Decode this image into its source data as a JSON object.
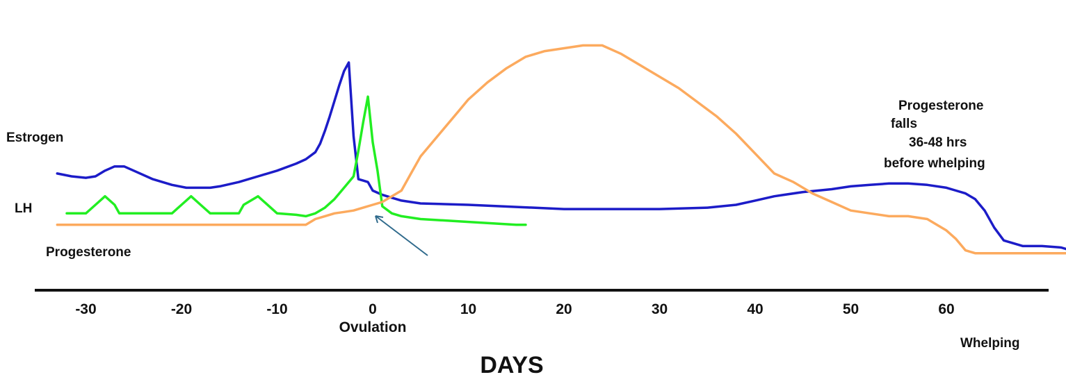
{
  "chart_data": {
    "type": "line",
    "title": "",
    "xlabel": "DAYS",
    "ylabel": "",
    "xlim": [
      -33,
      73
    ],
    "xticks": [
      -30,
      -20,
      -10,
      0,
      10,
      20,
      30,
      40,
      50,
      60
    ],
    "tick_labels": [
      "-30",
      "-20",
      "-10",
      "0",
      "10",
      "20",
      "30",
      "40",
      "50",
      "60"
    ],
    "y_axis_shown": false,
    "grid": false,
    "legend": "none (series labelled directly)",
    "annotations": {
      "ovulation": "Ovulation",
      "whelping": "Whelping",
      "progesterone_note": [
        "Progesterone",
        "falls",
        "36-48 hrs",
        "before whelping"
      ]
    },
    "series": [
      {
        "name": "Estrogen",
        "color": "#1c1cc8",
        "x": [
          -33,
          -31.5,
          -30,
          -29,
          -28,
          -27,
          -26.5,
          -26,
          -25,
          -23,
          -21,
          -19.5,
          -18,
          -17,
          -16,
          -14,
          -12,
          -10,
          -8,
          -7,
          -6,
          -5.5,
          -5,
          -4.5,
          -4,
          -3.5,
          -3,
          -2.5,
          -2,
          -1.5,
          -1.5,
          -1,
          -0.5,
          0,
          1,
          2,
          3,
          5,
          10,
          20,
          30,
          35,
          38,
          40,
          42,
          43,
          45,
          48,
          50,
          52,
          54,
          55,
          56,
          58,
          60,
          61,
          62,
          63,
          64,
          65,
          66,
          68,
          70,
          72,
          73
        ],
        "y": [
          41,
          40,
          39.5,
          40,
          42,
          43.5,
          43.5,
          43.5,
          42,
          39,
          37,
          36,
          36,
          36,
          36.5,
          38,
          40,
          42,
          44.5,
          46,
          48.5,
          51.5,
          56,
          61,
          66.5,
          72,
          77,
          80,
          54,
          39,
          39,
          38.5,
          38,
          35,
          33.5,
          32.5,
          31.5,
          30.5,
          30,
          28.5,
          28.5,
          29,
          30,
          31.5,
          33,
          33.5,
          34.5,
          35.5,
          36.5,
          37,
          37.5,
          37.5,
          37.5,
          37,
          36,
          35,
          34,
          32,
          28,
          22,
          17.5,
          15.5,
          15.5,
          15,
          14.5
        ]
      },
      {
        "name": "LH",
        "color": "#22ee22",
        "x": [
          -32,
          -31,
          -30,
          -29,
          -28,
          -27,
          -26.5,
          -21,
          -20,
          -19,
          -18,
          -17,
          -16,
          -15,
          -14,
          -13.5,
          -12,
          -10,
          -8,
          -7,
          -6,
          -5,
          -4,
          -3,
          -2,
          -1.5,
          -1,
          -0.5,
          0,
          0.5,
          1,
          2,
          3,
          5,
          10,
          15,
          16
        ],
        "y": [
          27,
          27,
          27,
          30,
          33,
          30,
          27,
          27,
          30,
          33,
          30,
          27,
          27,
          27,
          27,
          30,
          33,
          27,
          26.5,
          26,
          27,
          29,
          32,
          36,
          40,
          49,
          59,
          68,
          52,
          42,
          29.5,
          27,
          26,
          25,
          24,
          23,
          23
        ]
      },
      {
        "name": "Progesterone",
        "color": "#fcaa5e",
        "x": [
          -33,
          -25,
          -20,
          -15,
          -10,
          -8,
          -7,
          -6,
          -5,
          -4,
          -3,
          -2,
          -1,
          0,
          1,
          2,
          3,
          4,
          5,
          7,
          9,
          10,
          12,
          14,
          16,
          18,
          20,
          22,
          24,
          26,
          28,
          30,
          32,
          34,
          36,
          38,
          40,
          42,
          44,
          46,
          48,
          50,
          52,
          54,
          56,
          58,
          59,
          60,
          61,
          62,
          63,
          65,
          70,
          75,
          77,
          80
        ],
        "y": [
          23,
          23,
          23,
          23,
          23,
          23,
          23,
          25,
          26,
          27,
          27.5,
          28,
          29,
          30,
          31,
          33,
          35,
          41,
          47,
          55,
          63,
          67,
          73,
          78,
          82,
          84,
          85,
          86,
          86,
          83,
          79,
          75,
          71,
          66,
          61,
          55,
          48,
          41,
          38,
          34,
          31,
          28,
          27,
          26,
          26,
          25,
          23,
          21,
          18,
          14,
          13,
          13,
          13,
          13,
          13,
          13
        ]
      }
    ]
  }
}
